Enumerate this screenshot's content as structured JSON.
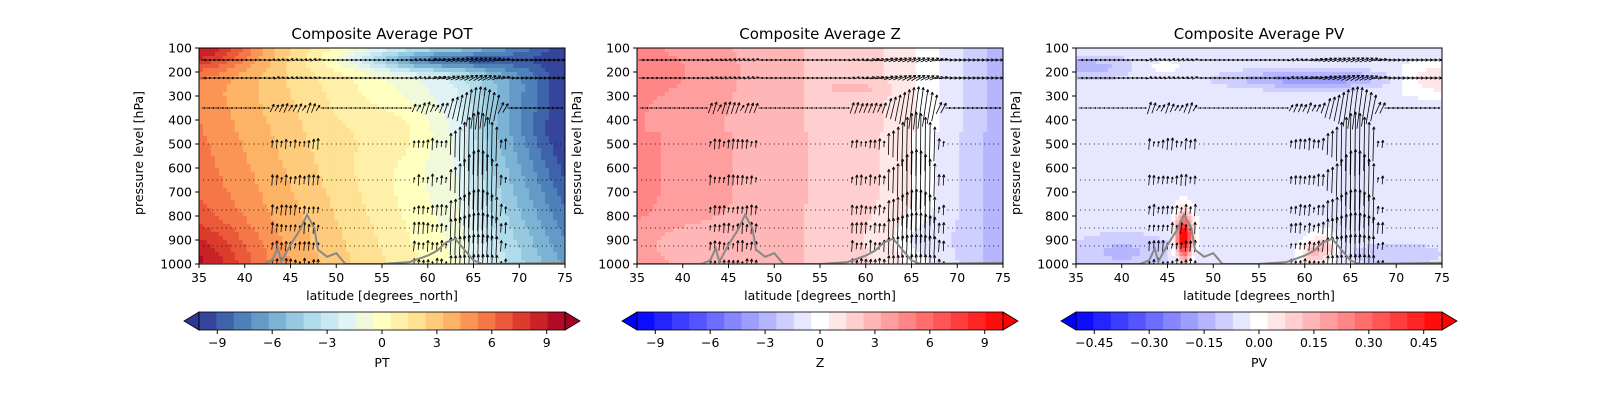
{
  "panels": [
    {
      "title": "Composite Average POT",
      "xlabel": "latitude [degrees_north]",
      "ylabel": "pressure level [hPa]",
      "colorbar_label": "PT",
      "colormap": "RdYlBu_r",
      "colorbar_ticks": [
        "−9",
        "−6",
        "−3",
        "0",
        "3",
        "6",
        "9"
      ],
      "fill_pattern": "pot"
    },
    {
      "title": "Composite Average Z",
      "xlabel": "latitude [degrees_north]",
      "ylabel": "pressure level [hPa]",
      "colorbar_label": "Z",
      "colormap": "bwr",
      "colorbar_ticks": [
        "−9",
        "−6",
        "−3",
        "0",
        "3",
        "6",
        "9"
      ],
      "fill_pattern": "z"
    },
    {
      "title": "Composite Average PV",
      "xlabel": "latitude [degrees_north]",
      "ylabel": "pressure level [hPa]",
      "colorbar_label": "PV",
      "colormap": "bwr",
      "colorbar_ticks": [
        "−0.45",
        "−0.30",
        "−0.15",
        "0.00",
        "0.15",
        "0.30",
        "0.45"
      ],
      "fill_pattern": "pv"
    }
  ],
  "chart_data": {
    "type": "heatmap",
    "x_ticks": [
      35,
      40,
      45,
      50,
      55,
      60,
      65,
      70,
      75
    ],
    "y_ticks": [
      100,
      200,
      300,
      400,
      500,
      600,
      700,
      800,
      900,
      1000
    ],
    "xlim": [
      35,
      75
    ],
    "ylim": [
      1000,
      100
    ],
    "y_inverted": true,
    "vector_overlay": true,
    "terrain_line_color": "#888888",
    "terrain_profile": {
      "lat": [
        35,
        42,
        43,
        43.6,
        44,
        45,
        46,
        46.8,
        47.6,
        48,
        49,
        50,
        51,
        55,
        58,
        60,
        61,
        62,
        63,
        64,
        65,
        66,
        75
      ],
      "p": [
        1000,
        1000,
        985,
        935,
        990,
        920,
        860,
        795,
        850,
        940,
        970,
        955,
        1000,
        1000,
        992,
        965,
        945,
        910,
        895,
        940,
        985,
        1000,
        995
      ]
    },
    "colorbar_levels": 21,
    "colorbar_range": {
      "POT": [
        -10,
        10
      ],
      "Z": [
        -10,
        10
      ],
      "PV": [
        -0.5,
        0.5
      ]
    }
  }
}
